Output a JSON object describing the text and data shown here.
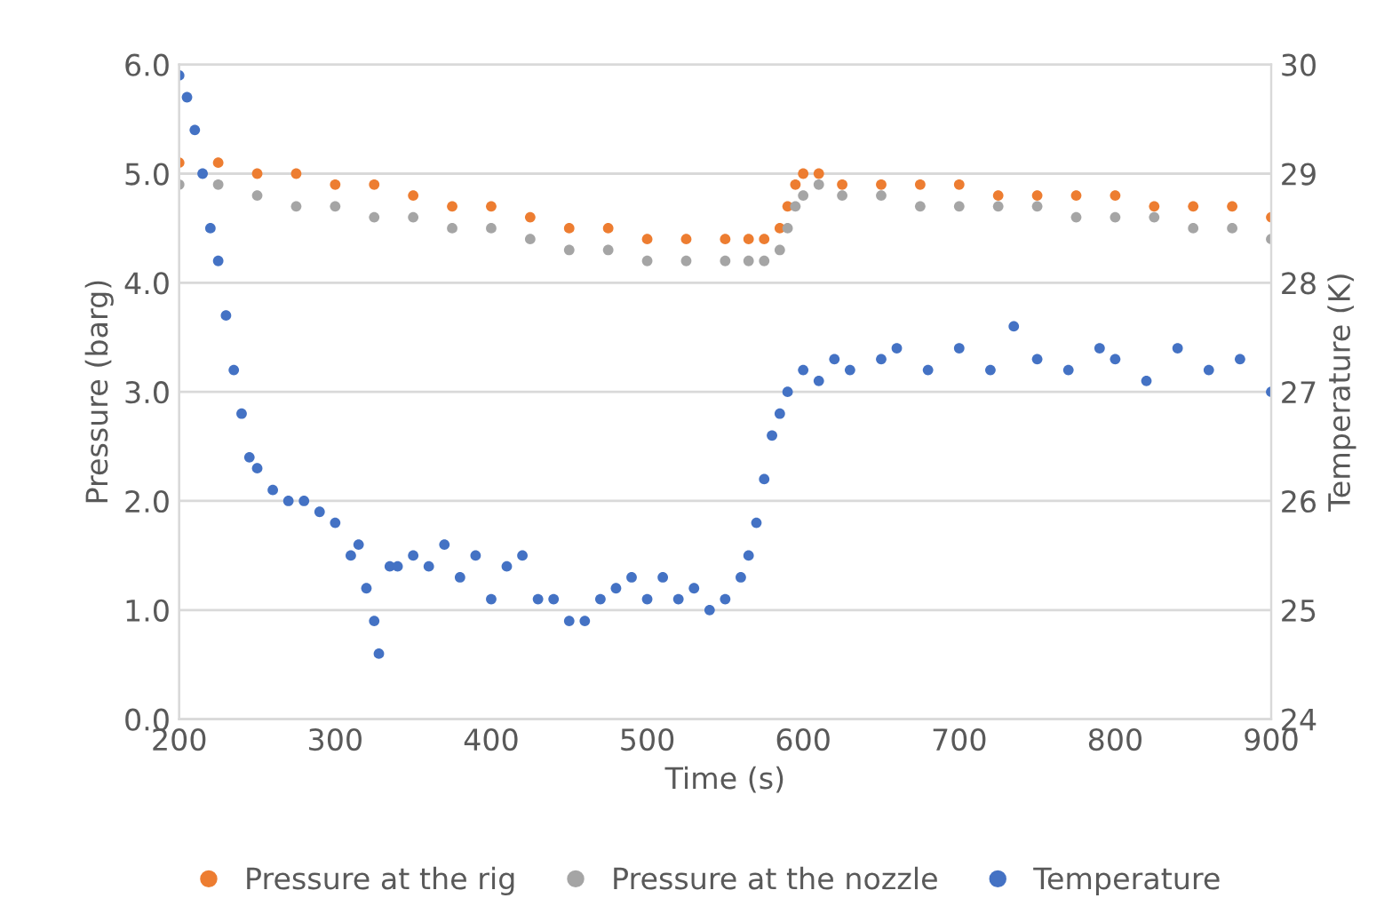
{
  "chart_data": {
    "type": "scatter",
    "xlabel": "Time (s)",
    "ylabel": "Pressure (barg)",
    "y2label": "Temperature (K)",
    "xlim": [
      200,
      900
    ],
    "xticks": [
      200,
      300,
      400,
      500,
      600,
      700,
      800,
      900
    ],
    "ylim": [
      0,
      6
    ],
    "yticks": [
      {
        "value": 0,
        "label": "0.0"
      },
      {
        "value": 1,
        "label": "1.0"
      },
      {
        "value": 2,
        "label": "2.0"
      },
      {
        "value": 3,
        "label": "3.0"
      },
      {
        "value": 4,
        "label": "4.0"
      },
      {
        "value": 5,
        "label": "5.0"
      },
      {
        "value": 6,
        "label": "6.0"
      }
    ],
    "y2lim": [
      24,
      30
    ],
    "y2ticks": [
      24,
      25,
      26,
      27,
      28,
      29,
      30
    ],
    "grid": "y",
    "legend": "bottom",
    "marker": "circle",
    "series": [
      {
        "name": "Pressure at the rig",
        "color": "#ed7d31",
        "x": [
          200,
          225,
          250,
          275,
          300,
          325,
          350,
          375,
          400,
          425,
          450,
          475,
          500,
          525,
          550,
          565,
          575,
          585,
          590,
          595,
          600,
          610,
          625,
          650,
          675,
          700,
          725,
          750,
          775,
          800,
          825,
          850,
          875,
          900
        ],
        "values": [
          5.1,
          5.1,
          5.0,
          5.0,
          4.9,
          4.9,
          4.8,
          4.7,
          4.7,
          4.6,
          4.5,
          4.5,
          4.4,
          4.4,
          4.4,
          4.4,
          4.4,
          4.5,
          4.7,
          4.9,
          5.0,
          5.0,
          4.9,
          4.9,
          4.9,
          4.9,
          4.8,
          4.8,
          4.8,
          4.8,
          4.7,
          4.7,
          4.7,
          4.6
        ]
      },
      {
        "name": "Pressure at the nozzle",
        "color": "#a5a5a5",
        "x": [
          200,
          225,
          250,
          275,
          300,
          325,
          350,
          375,
          400,
          425,
          450,
          475,
          500,
          525,
          550,
          565,
          575,
          585,
          590,
          595,
          600,
          610,
          625,
          650,
          675,
          700,
          725,
          750,
          775,
          800,
          825,
          850,
          875,
          900
        ],
        "values": [
          4.9,
          4.9,
          4.8,
          4.7,
          4.7,
          4.6,
          4.6,
          4.5,
          4.5,
          4.4,
          4.3,
          4.3,
          4.2,
          4.2,
          4.2,
          4.2,
          4.2,
          4.3,
          4.5,
          4.7,
          4.8,
          4.9,
          4.8,
          4.8,
          4.7,
          4.7,
          4.7,
          4.7,
          4.6,
          4.6,
          4.6,
          4.5,
          4.5,
          4.4
        ]
      },
      {
        "name": "Temperature",
        "color": "#4472c4",
        "axis": "y2",
        "x": [
          200,
          205,
          210,
          215,
          220,
          225,
          230,
          235,
          240,
          245,
          250,
          260,
          270,
          280,
          290,
          300,
          310,
          315,
          320,
          325,
          328,
          335,
          340,
          350,
          360,
          370,
          380,
          390,
          400,
          410,
          420,
          430,
          440,
          450,
          460,
          470,
          480,
          490,
          500,
          510,
          520,
          530,
          540,
          550,
          560,
          565,
          570,
          575,
          580,
          585,
          590,
          600,
          610,
          620,
          630,
          650,
          660,
          680,
          700,
          720,
          735,
          750,
          770,
          790,
          800,
          820,
          840,
          860,
          880,
          900
        ],
        "values": [
          29.9,
          29.7,
          29.4,
          29.0,
          28.5,
          28.2,
          27.7,
          27.2,
          26.8,
          26.4,
          26.3,
          26.1,
          26.0,
          26.0,
          25.9,
          25.8,
          25.5,
          25.6,
          25.2,
          24.9,
          24.6,
          25.4,
          25.4,
          25.5,
          25.4,
          25.6,
          25.3,
          25.5,
          25.1,
          25.4,
          25.5,
          25.1,
          25.1,
          24.9,
          24.9,
          25.1,
          25.2,
          25.3,
          25.1,
          25.3,
          25.1,
          25.2,
          25.0,
          25.1,
          25.3,
          25.5,
          25.8,
          26.2,
          26.6,
          26.8,
          27.0,
          27.2,
          27.1,
          27.3,
          27.2,
          27.3,
          27.4,
          27.2,
          27.4,
          27.2,
          27.6,
          27.3,
          27.2,
          27.4,
          27.3,
          27.1,
          27.4,
          27.2,
          27.3,
          27.0
        ]
      }
    ]
  }
}
